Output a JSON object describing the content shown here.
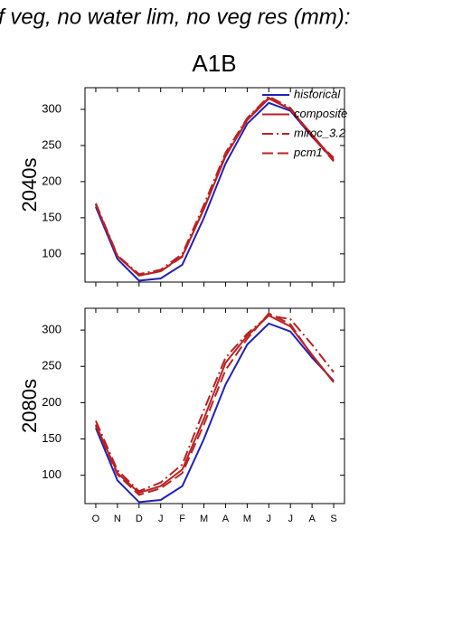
{
  "title": "f veg, no water lim, no veg res (mm):",
  "subtitle": "A1B",
  "chart_data": [
    {
      "type": "line",
      "ylabel": "2040s",
      "ylim": [
        61,
        330
      ],
      "yticks": [
        100,
        150,
        200,
        250,
        300
      ],
      "legend": "upper right",
      "series": [
        {
          "name": "historical",
          "color": "#2020b8",
          "dash": "solid",
          "values": [
            165,
            93,
            63,
            66,
            85,
            150,
            225,
            280,
            309,
            298,
            262,
            230
          ]
        },
        {
          "name": "composite",
          "color": "#bb2222",
          "dash": "solid",
          "values": [
            168,
            97,
            70,
            76,
            97,
            162,
            235,
            285,
            315,
            300,
            265,
            230
          ]
        },
        {
          "name": "miroc_3.2",
          "color": "#bb2222",
          "dash": "dashdot",
          "values": [
            170,
            98,
            72,
            78,
            100,
            168,
            240,
            288,
            318,
            302,
            262,
            233
          ]
        },
        {
          "name": "pcm1",
          "color": "#bb2222",
          "dash": "dash",
          "values": [
            168,
            97,
            70,
            76,
            96,
            163,
            237,
            287,
            316,
            300,
            263,
            228
          ]
        }
      ]
    },
    {
      "type": "line",
      "ylabel": "2080s",
      "ylim": [
        61,
        330
      ],
      "yticks": [
        100,
        150,
        200,
        250,
        300
      ],
      "categories": [
        "O",
        "N",
        "D",
        "J",
        "F",
        "M",
        "A",
        "M",
        "J",
        "J",
        "A",
        "S"
      ],
      "series": [
        {
          "color": "#2020b8",
          "dash": "solid",
          "values": [
            165,
            93,
            63,
            66,
            85,
            150,
            225,
            280,
            309,
            298,
            262,
            230
          ]
        },
        {
          "color": "#bb2222",
          "dash": "solid",
          "values": [
            170,
            103,
            76,
            85,
            108,
            178,
            255,
            292,
            320,
            305,
            266,
            228
          ]
        },
        {
          "color": "#bb2222",
          "dash": "dashdot",
          "values": [
            175,
            107,
            78,
            90,
            115,
            190,
            262,
            295,
            320,
            315,
            280,
            242
          ]
        },
        {
          "color": "#bb2222",
          "dash": "dash",
          "values": [
            168,
            101,
            73,
            82,
            103,
            170,
            245,
            288,
            323,
            308,
            265,
            228
          ]
        }
      ]
    }
  ]
}
